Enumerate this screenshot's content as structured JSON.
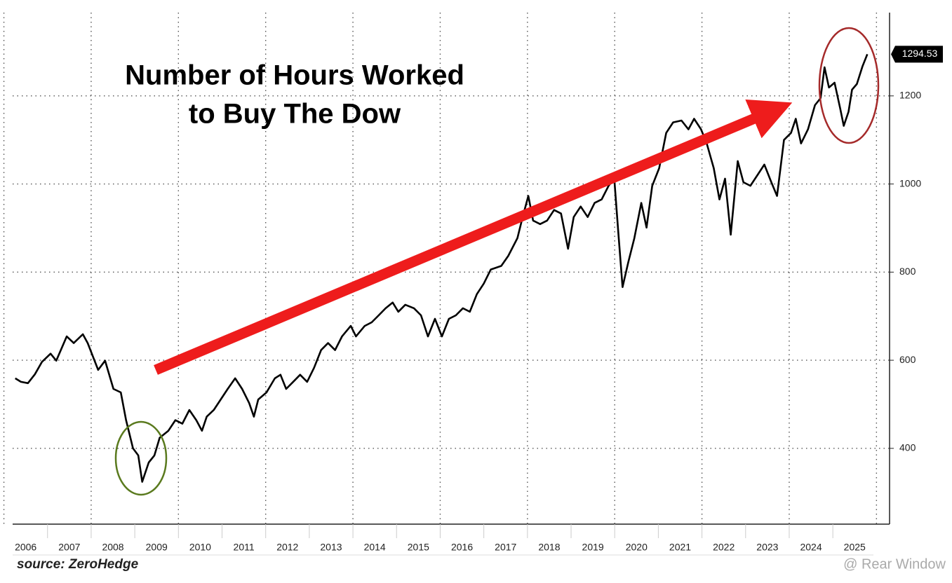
{
  "chart_data": {
    "type": "line",
    "title": [
      "Number of Hours Worked",
      "to Buy The Dow"
    ],
    "source": "source: ZeroHedge",
    "watermark": "@ Rear Window",
    "x": [
      2006.26,
      2006.39,
      2006.55,
      2006.71,
      2006.87,
      2007.07,
      2007.2,
      2007.44,
      2007.6,
      2007.81,
      2007.92,
      2008.16,
      2008.32,
      2008.51,
      2008.68,
      2008.8,
      2008.96,
      2009.08,
      2009.17,
      2009.32,
      2009.45,
      2009.57,
      2009.77,
      2009.93,
      2010.09,
      2010.25,
      2010.41,
      2010.54,
      2010.65,
      2010.81,
      2010.97,
      2011.13,
      2011.3,
      2011.46,
      2011.62,
      2011.73,
      2011.83,
      2012.02,
      2012.21,
      2012.34,
      2012.47,
      2012.63,
      2012.79,
      2012.95,
      2013.11,
      2013.27,
      2013.43,
      2013.59,
      2013.75,
      2013.95,
      2014.07,
      2014.27,
      2014.43,
      2014.59,
      2014.75,
      2014.91,
      2015.04,
      2015.2,
      2015.4,
      2015.56,
      2015.72,
      2015.88,
      2016.04,
      2016.2,
      2016.36,
      2016.52,
      2016.68,
      2016.84,
      2017.0,
      2017.16,
      2017.4,
      2017.56,
      2017.77,
      2017.89,
      2018.02,
      2018.13,
      2018.29,
      2018.45,
      2018.61,
      2018.77,
      2018.93,
      2019.06,
      2019.22,
      2019.38,
      2019.54,
      2019.7,
      2019.86,
      2019.99,
      2020.08,
      2020.18,
      2020.31,
      2020.45,
      2020.61,
      2020.73,
      2020.86,
      2021.02,
      2021.18,
      2021.34,
      2021.53,
      2021.69,
      2021.82,
      2021.98,
      2022.11,
      2022.27,
      2022.4,
      2022.53,
      2022.66,
      2022.82,
      2022.95,
      2023.11,
      2023.27,
      2023.43,
      2023.59,
      2023.72,
      2023.88,
      2024.04,
      2024.15,
      2024.27,
      2024.43,
      2024.59,
      2024.72,
      2024.81,
      2024.91,
      2025.04,
      2025.17,
      2025.25,
      2025.36,
      2025.44,
      2025.55,
      2025.68,
      2025.79
    ],
    "series": [
      {
        "color": "#000000",
        "values": [
          559,
          551,
          548,
          568,
          596,
          615,
          599,
          654,
          639,
          659,
          639,
          578,
          599,
          535,
          527,
          464,
          400,
          384,
          324,
          368,
          384,
          424,
          440,
          464,
          456,
          487,
          464,
          440,
          472,
          487,
          511,
          535,
          559,
          535,
          503,
          472,
          511,
          527,
          559,
          567,
          535,
          551,
          567,
          551,
          583,
          623,
          639,
          623,
          654,
          678,
          654,
          678,
          686,
          702,
          718,
          731,
          710,
          726,
          718,
          702,
          654,
          694,
          654,
          694,
          702,
          718,
          710,
          750,
          774,
          806,
          814,
          837,
          877,
          925,
          973,
          917,
          909,
          917,
          941,
          933,
          853,
          925,
          949,
          925,
          957,
          965,
          996,
          1012,
          893,
          766,
          822,
          877,
          957,
          901,
          996,
          1036,
          1116,
          1140,
          1144,
          1124,
          1148,
          1124,
          1092,
          1036,
          965,
          1012,
          885,
          1052,
          1004,
          996,
          1020,
          1044,
          1004,
          973,
          1100,
          1116,
          1148,
          1092,
          1124,
          1179,
          1195,
          1265,
          1219,
          1230,
          1171,
          1132,
          1164,
          1214,
          1227,
          1267,
          1294.53
        ]
      }
    ],
    "xlim": [
      2006.2,
      2026.3
    ],
    "xticks": [
      2006,
      2007,
      2008,
      2009,
      2010,
      2011,
      2012,
      2013,
      2014,
      2015,
      2016,
      2017,
      2018,
      2019,
      2020,
      2021,
      2022,
      2023,
      2024,
      2025
    ],
    "ylim": [
      228,
      1389
    ],
    "yticks": [
      400,
      600,
      800,
      1000,
      1200
    ],
    "grid": true
  }
}
